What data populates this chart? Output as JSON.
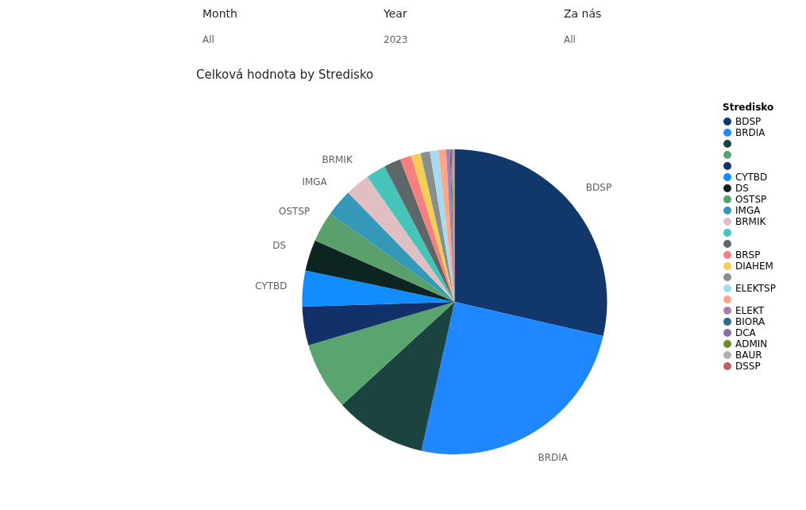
{
  "chart_data": {
    "type": "pie",
    "title": "Celková hodnota by Stredisko",
    "legend_title": "Stredisko",
    "legend": "right",
    "categories": [
      "BDSP",
      "BRDIA",
      null,
      null,
      null,
      "CYTBD",
      "DS",
      "OSTSP",
      "IMGA",
      "BRMIK",
      null,
      null,
      "BRSP",
      "DIAHEM",
      null,
      "ELEKTSP",
      null,
      "ELEKT",
      "BIORA",
      "DCA",
      "ADMIN",
      "BAUR",
      "DSSP"
    ],
    "values": [
      28.6,
      24.9,
      9.7,
      7.2,
      4.1,
      3.8,
      3.3,
      3.2,
      2.9,
      2.6,
      2.1,
      1.8,
      1.2,
      1.0,
      1.0,
      0.9,
      0.8,
      0.4,
      0.1,
      0.1,
      0.1,
      0.1,
      0.1
    ],
    "colors": [
      "#12386b",
      "#1f87ff",
      "#1b4340",
      "#5aa46f",
      "#12306a",
      "#118dff",
      "#0d2421",
      "#59a06d",
      "#3598b8",
      "#e0bfc3",
      "#46c4b9",
      "#5d6768",
      "#f67f7f",
      "#f4cf55",
      "#87908f",
      "#a6dbef",
      "#fea685",
      "#a97fad",
      "#286b8a",
      "#8a6d9e",
      "#6b8e23",
      "#b0b0b0",
      "#c06060"
    ],
    "annotations": [
      "Month",
      "All",
      "Year",
      "2023",
      "Za nás",
      "All"
    ]
  }
}
